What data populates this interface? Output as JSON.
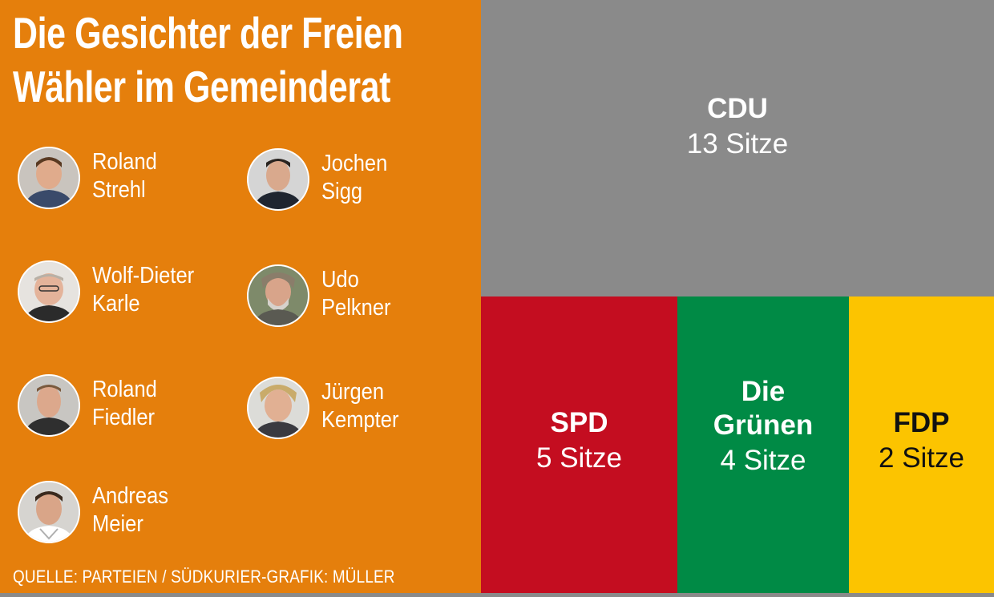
{
  "headline": [
    "Die Gesichter der  Freien",
    "Wähler im Gemeinderat"
  ],
  "people": [
    {
      "first": "Roland",
      "last": "Strehl"
    },
    {
      "first": "Jochen",
      "last": "Sigg"
    },
    {
      "first": "Wolf-Dieter",
      "last": "Karle"
    },
    {
      "first": "Udo",
      "last": "Pelkner"
    },
    {
      "first": "Roland",
      "last": "Fiedler"
    },
    {
      "first": "Jürgen",
      "last": "Kempter"
    },
    {
      "first": "Andreas",
      "last": "Meier"
    }
  ],
  "source": "QUELLE: PARTEIEN / SÜDKURIER-GRAFIK: MÜLLER",
  "colors": {
    "panel": "#e57f0c",
    "CDU": "#8a8a8a",
    "SPD": "#c40d20",
    "Die Grünen": "#008a45",
    "FDP": "#fcc400"
  },
  "chart_data": {
    "type": "treemap",
    "title": "",
    "series": [
      {
        "name": "CDU",
        "value": 13,
        "label": "13 Sitze",
        "color": "#8a8a8a",
        "text_color": "#ffffff"
      },
      {
        "name": "SPD",
        "value": 5,
        "label": "5 Sitze",
        "color": "#c40d20",
        "text_color": "#ffffff"
      },
      {
        "name": "Die Grünen",
        "value": 4,
        "label": "4 Sitze",
        "color": "#008a45",
        "text_color": "#ffffff"
      },
      {
        "name": "FDP",
        "value": 2,
        "label": "2 Sitze",
        "color": "#fcc400",
        "text_color": "#111111"
      }
    ]
  }
}
